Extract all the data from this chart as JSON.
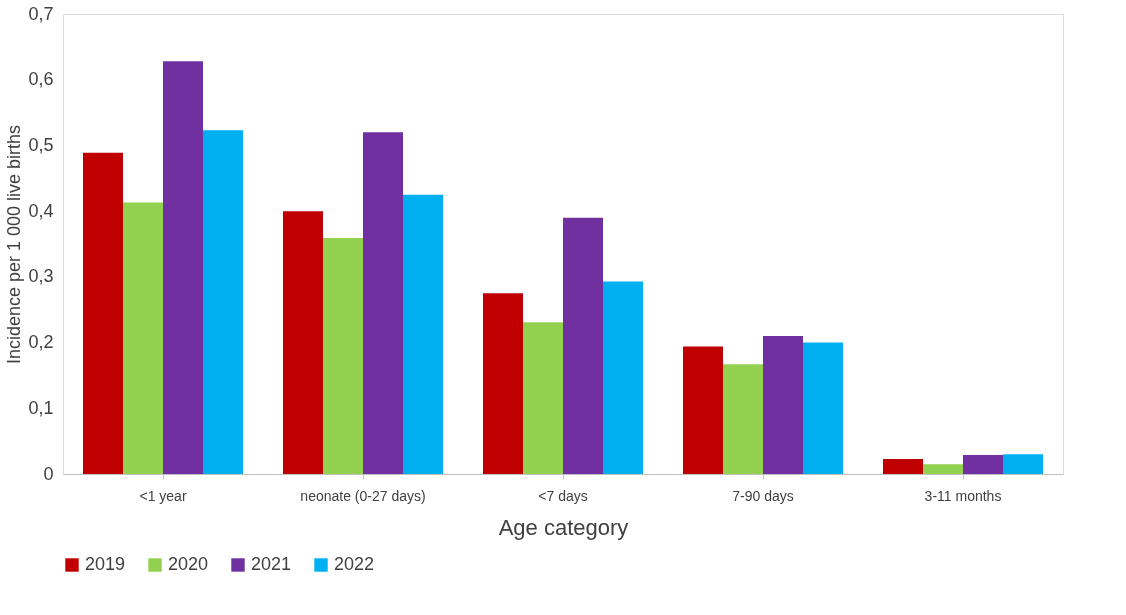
{
  "chart_data": {
    "type": "bar",
    "xlabel": "Age category",
    "ylabel": "Incidence per  1 000 live births",
    "categories": [
      "<1 year",
      "neonate (0-27 days)",
      "<7 days",
      "7-90 days",
      "3-11 months"
    ],
    "series": [
      {
        "name": "2019",
        "color": "#c00000",
        "values": [
          0.489,
          0.4,
          0.275,
          0.194,
          0.023
        ]
      },
      {
        "name": "2020",
        "color": "#92d050",
        "values": [
          0.413,
          0.359,
          0.231,
          0.167,
          0.015
        ]
      },
      {
        "name": "2021",
        "color": "#7030a0",
        "values": [
          0.628,
          0.52,
          0.39,
          0.21,
          0.029
        ]
      },
      {
        "name": "2022",
        "color": "#00b0f0",
        "values": [
          0.523,
          0.425,
          0.293,
          0.2,
          0.03
        ]
      }
    ],
    "ylim": [
      0,
      0.7
    ],
    "yticks": [
      0,
      {
        "value": 0.1,
        "label": "0,1"
      },
      {
        "value": 0.2,
        "label": "0,2"
      },
      {
        "value": 0.3,
        "label": "0,3"
      },
      {
        "value": 0.4,
        "label": "0,4"
      },
      {
        "value": 0.5,
        "label": "0,5"
      },
      {
        "value": 0.6,
        "label": "0,6"
      },
      {
        "value": 0.7,
        "label": "0,7"
      }
    ],
    "grid": false,
    "legend": "bottom"
  }
}
